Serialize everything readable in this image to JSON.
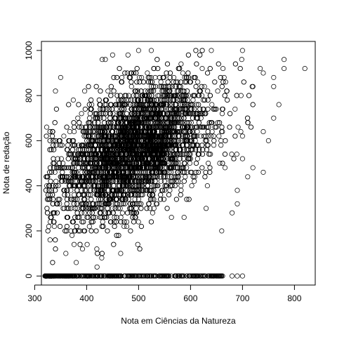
{
  "chart_data": {
    "type": "scatter",
    "title": "",
    "xlabel": "Nota em Ciências da Natureza",
    "ylabel": "Nota de redação",
    "xlim": [
      313,
      840
    ],
    "ylim": [
      -40,
      1040
    ],
    "x_ticks": [
      300,
      400,
      500,
      600,
      700,
      800
    ],
    "y_ticks": [
      0,
      200,
      400,
      600,
      800,
      1000
    ],
    "x_tick_labels": [
      "300",
      "400",
      "500",
      "600",
      "700",
      "800"
    ],
    "y_tick_labels": [
      "0",
      "200",
      "400",
      "600",
      "800",
      "1000"
    ],
    "marker": "open-circle",
    "grid": false,
    "point_color": "#000000",
    "cloud": {
      "center": [
        490,
        560
      ],
      "sd": [
        70,
        130
      ],
      "x_range": [
        320,
        820
      ],
      "y_range": [
        40,
        1000
      ]
    },
    "zero_row": {
      "y": 0,
      "x_range": [
        320,
        700
      ]
    },
    "points": [
      [
        820,
        920
      ],
      [
        780,
        960
      ],
      [
        780,
        920
      ],
      [
        760,
        880
      ],
      [
        760,
        840
      ],
      [
        770,
        760
      ],
      [
        760,
        700
      ],
      [
        740,
        640
      ],
      [
        750,
        600
      ],
      [
        740,
        460
      ],
      [
        700,
        620
      ],
      [
        700,
        520
      ],
      [
        690,
        320
      ],
      [
        680,
        280
      ],
      [
        660,
        200
      ],
      [
        630,
        300
      ],
      [
        690,
        380
      ],
      [
        710,
        440
      ],
      [
        720,
        480
      ],
      [
        720,
        840
      ],
      [
        740,
        900
      ],
      [
        700,
        1000
      ],
      [
        640,
        1000
      ],
      [
        500,
        1000
      ],
      [
        450,
        980
      ],
      [
        430,
        960
      ],
      [
        350,
        880
      ],
      [
        340,
        820
      ],
      [
        420,
        40
      ],
      [
        380,
        60
      ],
      [
        360,
        100
      ],
      [
        680,
        0
      ],
      [
        690,
        0
      ],
      [
        700,
        0
      ],
      [
        640,
        0
      ],
      [
        620,
        0
      ],
      [
        650,
        0
      ]
    ]
  }
}
